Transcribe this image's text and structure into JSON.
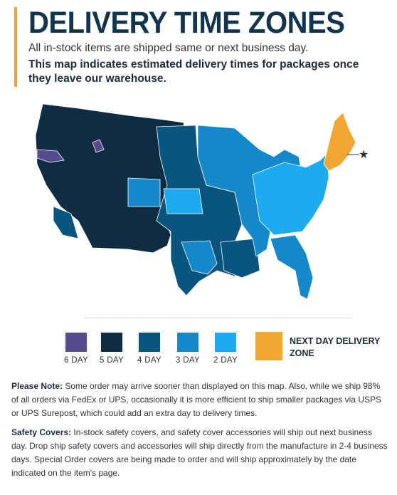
{
  "header": {
    "title": "DELIVERY TIME ZONES",
    "subtitle": "All in-stock items are shipped same or next business day.",
    "emphasis": "This map indicates estimated delivery times for packages once they leave our warehouse."
  },
  "colors": {
    "day6": "#574b8e",
    "day5": "#0e2d42",
    "day4": "#0a557f",
    "day3": "#1488c8",
    "day2": "#1eaaf0",
    "next_day": "#f2a633",
    "accent": "#f0a13a",
    "title": "#12344d"
  },
  "legend": {
    "items": [
      {
        "label": "6 DAY"
      },
      {
        "label": "5 DAY"
      },
      {
        "label": "4 DAY"
      },
      {
        "label": "3 DAY"
      },
      {
        "label": "2 DAY"
      }
    ],
    "next_day_label": "NEXT DAY DELIVERY ZONE"
  },
  "map": {
    "marker_icon": "star-icon"
  },
  "notes": {
    "please_note_label": "Please Note:",
    "please_note_text": " Some order may arrive sooner than displayed on this map. Also, while we ship 98% of all orders via FedEx or UPS, occasionally it is more efficient to ship smaller packages via USPS or UPS Surepost, which could add an extra day to delivery times.",
    "safety_label": "Safety Covers:",
    "safety_text": " In-stock safety covers, and safety cover accessories will ship out next business day. Drop ship safety covers and accessories will ship directly from the manufacture in 2-4 business days. Special Order covers are being made to order and will ship approximately by the date indicated on the item's page."
  }
}
